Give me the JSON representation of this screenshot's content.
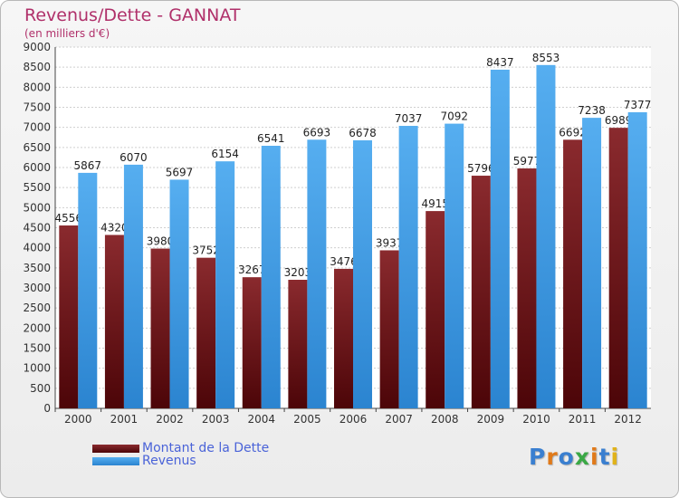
{
  "chart_data": {
    "type": "bar",
    "title": "Revenus/Dette - GANNAT",
    "subtitle": "(en milliers d'€)",
    "categories": [
      "2000",
      "2001",
      "2002",
      "2003",
      "2004",
      "2005",
      "2006",
      "2007",
      "2008",
      "2009",
      "2010",
      "2011",
      "2012"
    ],
    "series": [
      {
        "name": "Montant de la Dette",
        "color": "#6e0f14",
        "values": [
          4556,
          4320,
          3980,
          3752,
          3267,
          3203,
          3476,
          3937,
          4915,
          5796,
          5977,
          6692,
          6989
        ],
        "labels": [
          "4556",
          "4320",
          "3980",
          "3752",
          "3267",
          "3203",
          "3476",
          "3937",
          "4915",
          "5796",
          "5977",
          "6692",
          "6989"
        ]
      },
      {
        "name": "Revenus",
        "color": "#4aa3e8",
        "values": [
          5867,
          6070,
          5697,
          6154,
          6541,
          6693,
          6678,
          7037,
          7092,
          8437,
          8553,
          7238,
          7377
        ],
        "labels": [
          "5867",
          "6070",
          "5697",
          "6154",
          "6541",
          "6693",
          "6678",
          "7037",
          "7092",
          "8437",
          "8553",
          "7238",
          "7377"
        ]
      }
    ],
    "ylim": [
      0,
      9000
    ],
    "yticks": [
      "0",
      "500",
      "1000",
      "1500",
      "2000",
      "2500",
      "3000",
      "3500",
      "4000",
      "4500",
      "5000",
      "5500",
      "6000",
      "6500",
      "7000",
      "7500",
      "8000",
      "8500",
      "9000"
    ],
    "grid": true,
    "legend": "bottom-left"
  },
  "logo": {
    "letters": [
      {
        "ch": "P",
        "color": "#3a7fd0"
      },
      {
        "ch": "r",
        "color": "#e07a1a"
      },
      {
        "ch": "o",
        "color": "#3a7fd0"
      },
      {
        "ch": "x",
        "color": "#3aa845"
      },
      {
        "ch": "i",
        "color": "#e07a1a"
      },
      {
        "ch": "t",
        "color": "#3a7fd0"
      },
      {
        "ch": "i",
        "color": "#e0b21a"
      }
    ]
  }
}
